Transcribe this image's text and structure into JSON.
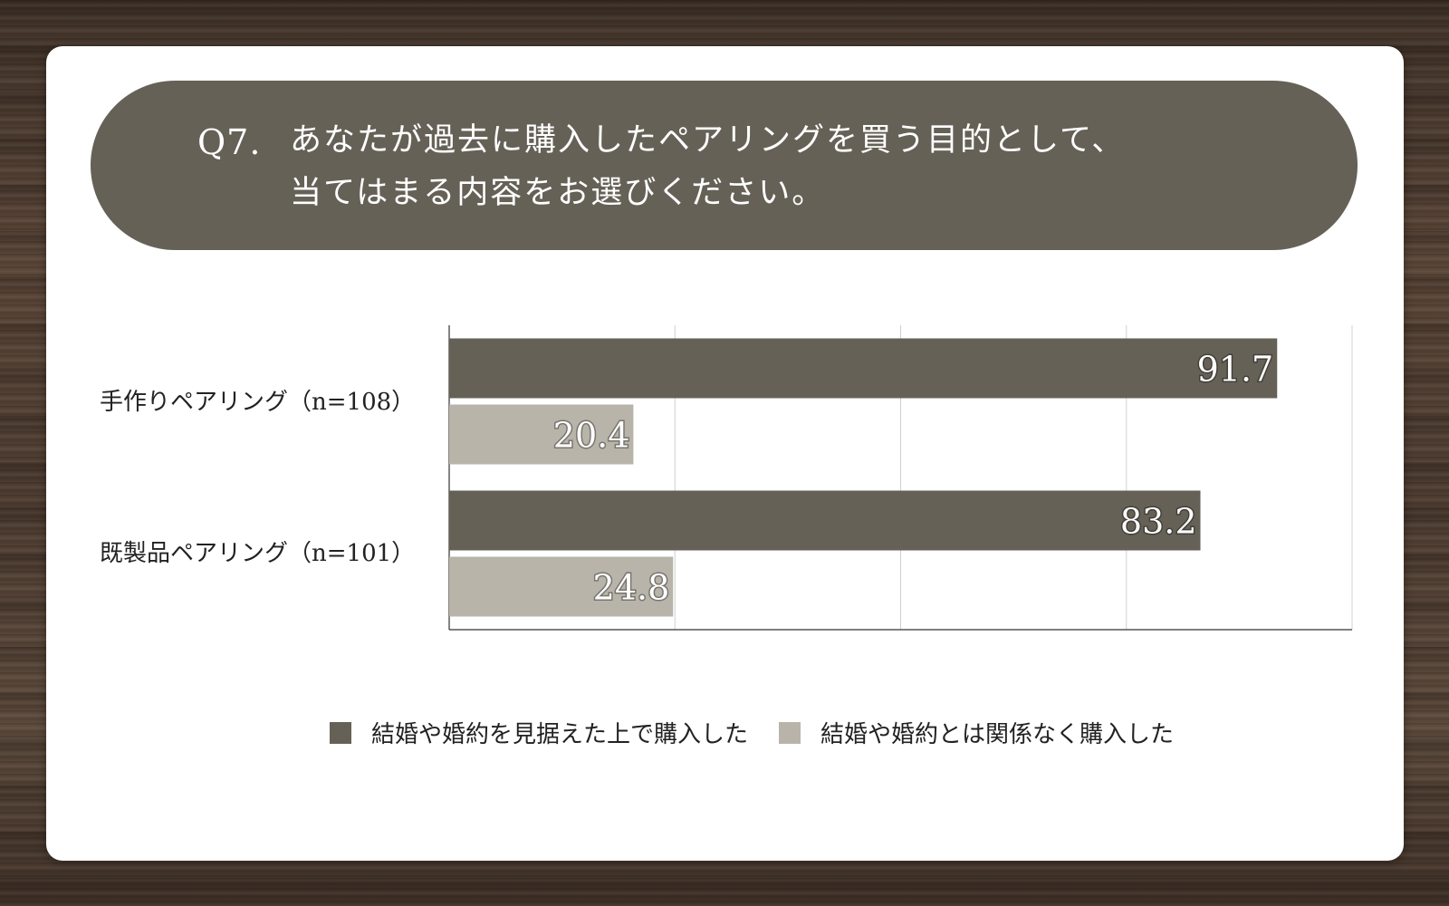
{
  "question": {
    "number": "Q7.",
    "line1": "あなたが過去に購入したペアリングを買う目的として、",
    "line2": "当てはまる内容をお選びください。"
  },
  "colors": {
    "banner": "#666157",
    "series1": "#666157",
    "series2": "#b8b4aa"
  },
  "chart_data": {
    "type": "bar",
    "orientation": "horizontal",
    "categories": [
      "手作りペアリング（n=108）",
      "既製品ペアリング（n=101）"
    ],
    "series": [
      {
        "name": "結婚や婚約を見据えた上で購入した",
        "values": [
          91.7,
          83.2
        ]
      },
      {
        "name": "結婚や婚約とは関係なく購入した",
        "values": [
          20.4,
          24.8
        ]
      }
    ],
    "xlim": [
      0,
      100
    ],
    "grid": true,
    "legend_position": "bottom",
    "data_labels": true
  }
}
